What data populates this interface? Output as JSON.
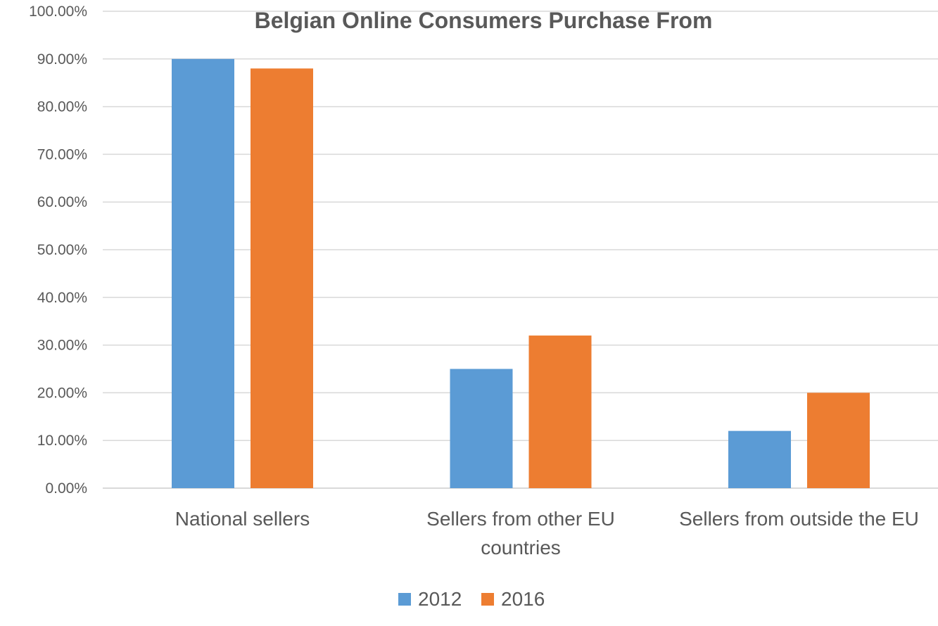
{
  "chart_data": {
    "type": "bar",
    "title": "Belgian Online Consumers Purchase From",
    "xlabel": "",
    "ylabel": "",
    "categories": [
      [
        "National sellers"
      ],
      [
        "Sellers from other EU",
        "countries"
      ],
      [
        "Sellers from outside the EU"
      ]
    ],
    "series": [
      {
        "name": "2012",
        "color": "#5B9BD5",
        "values": [
          0.9,
          0.25,
          0.12
        ]
      },
      {
        "name": "2016",
        "color": "#ED7D31",
        "values": [
          0.88,
          0.32,
          0.2
        ]
      }
    ],
    "ylim": [
      0,
      1.0
    ],
    "y_ticks": [
      "0.00%",
      "10.00%",
      "20.00%",
      "30.00%",
      "40.00%",
      "50.00%",
      "60.00%",
      "70.00%",
      "80.00%",
      "90.00%",
      "100.00%"
    ],
    "grid": true,
    "legend_position": "bottom",
    "gridline_color": "#D9D9D9",
    "text_color": "#595959"
  }
}
